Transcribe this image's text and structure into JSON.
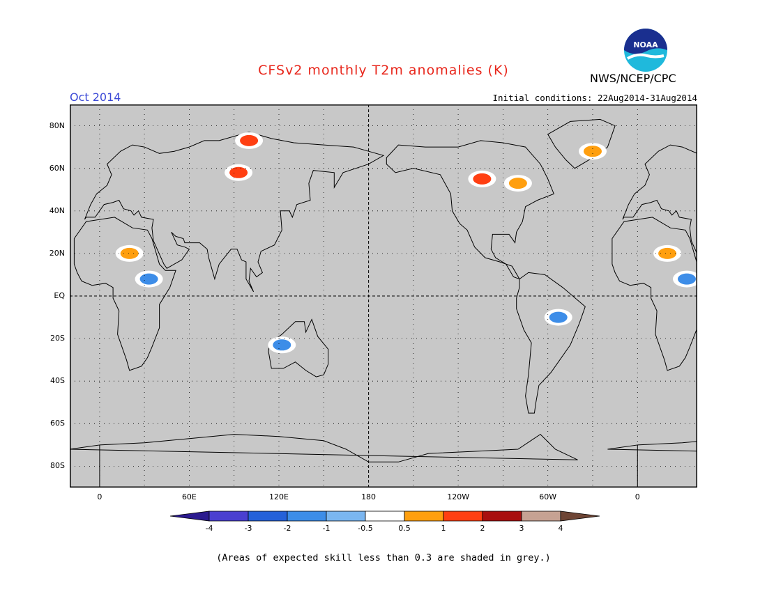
{
  "header": {
    "title": "CFSv2 monthly T2m anomalies (K)",
    "agency": "NWS/NCEP/CPC",
    "logo_text": "NOAA",
    "valid_month": "Oct 2014",
    "initial_conditions": "Initial conditions: 22Aug2014-31Aug2014"
  },
  "axes": {
    "lat_labels": [
      {
        "label": "80N",
        "lat": 80
      },
      {
        "label": "60N",
        "lat": 60
      },
      {
        "label": "40N",
        "lat": 40
      },
      {
        "label": "20N",
        "lat": 20
      },
      {
        "label": "EQ",
        "lat": 0
      },
      {
        "label": "20S",
        "lat": -20
      },
      {
        "label": "40S",
        "lat": -40
      },
      {
        "label": "60S",
        "lat": -60
      },
      {
        "label": "80S",
        "lat": -80
      }
    ],
    "lon_labels": [
      {
        "label": "0",
        "lon": 0
      },
      {
        "label": "60E",
        "lon": 60
      },
      {
        "label": "120E",
        "lon": 120
      },
      {
        "label": "180",
        "lon": 180
      },
      {
        "label": "120W",
        "lon": 240
      },
      {
        "label": "60W",
        "lon": 300
      },
      {
        "label": "0",
        "lon": 360
      }
    ],
    "lon_range": [
      -20,
      400
    ],
    "lat_range": [
      -90,
      90
    ]
  },
  "colors": {
    "grey_mask": "#c8c8c8",
    "land_white": "#ffffff",
    "coast": "#000000"
  },
  "colorbar": {
    "bins": [
      {
        "color": "#2b1a8f"
      },
      {
        "color": "#4a3fd0"
      },
      {
        "color": "#2561d9"
      },
      {
        "color": "#3d8de8"
      },
      {
        "color": "#7bb6f0"
      },
      {
        "color": "#ffffff"
      },
      {
        "color": "#ff9f0f"
      },
      {
        "color": "#ff3f12"
      },
      {
        "color": "#a80f0f"
      },
      {
        "color": "#c6a293"
      },
      {
        "color": "#6e4535"
      }
    ],
    "tick_labels": [
      "-4",
      "-3",
      "-2",
      "-1",
      "-0.5",
      "0.5",
      "1",
      "2",
      "3",
      "4"
    ]
  },
  "footnote": "(Areas of expected skill less than 0.3 are shaded in grey.)",
  "anomaly_regions": [
    {
      "name": "central-canada",
      "lon": 256,
      "lat": 55,
      "category": "2"
    },
    {
      "name": "hudson-bay-east",
      "lon": 280,
      "lat": 53,
      "category": "1"
    },
    {
      "name": "sahara-sahel",
      "lon": 20,
      "lat": 20,
      "category": "1"
    },
    {
      "name": "greenland-east",
      "lon": 330,
      "lat": 68,
      "category": "1"
    },
    {
      "name": "siberia-north",
      "lon": 100,
      "lat": 73,
      "category": "2"
    },
    {
      "name": "central-siberia",
      "lon": 93,
      "lat": 58,
      "category": "2"
    },
    {
      "name": "amazon",
      "lon": 307,
      "lat": -10,
      "category": "-1"
    },
    {
      "name": "australia-west",
      "lon": 122,
      "lat": -23,
      "category": "-1"
    },
    {
      "name": "east-africa",
      "lon": 33,
      "lat": 8,
      "category": "-1"
    }
  ]
}
